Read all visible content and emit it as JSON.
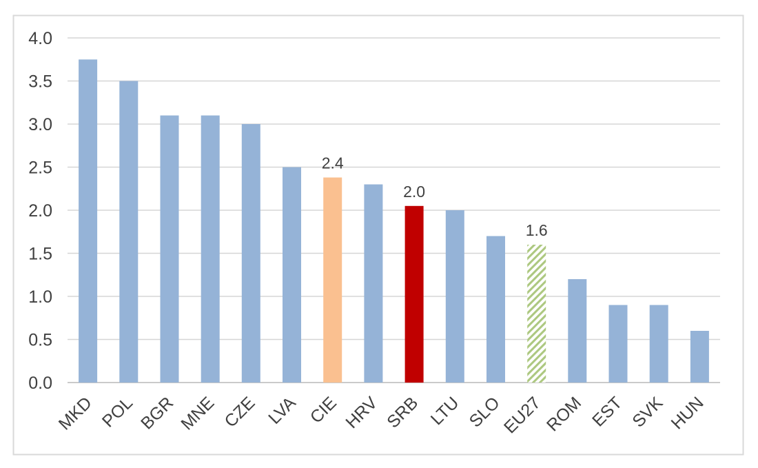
{
  "chart_data": {
    "type": "bar",
    "title": "",
    "xlabel": "",
    "ylabel": "",
    "ylim": [
      0.0,
      4.0
    ],
    "ytick_step": 0.5,
    "grid": true,
    "legend": "none",
    "yticks": [
      "0.0",
      "0.5",
      "1.0",
      "1.5",
      "2.0",
      "2.5",
      "3.0",
      "3.5",
      "4.0"
    ],
    "categories": [
      "MKD",
      "POL",
      "BGR",
      "MNE",
      "CZE",
      "LVA",
      "CIE",
      "HRV",
      "SRB",
      "LTU",
      "SLO",
      "EU27",
      "ROM",
      "EST",
      "SVK",
      "HUN"
    ],
    "values": [
      3.75,
      3.5,
      3.1,
      3.1,
      3.0,
      2.5,
      2.38,
      2.3,
      2.05,
      2.0,
      1.7,
      1.6,
      1.2,
      0.9,
      0.9,
      0.6
    ],
    "bar_styles": [
      "default",
      "default",
      "default",
      "default",
      "default",
      "default",
      "orange",
      "default",
      "red",
      "default",
      "default",
      "green-hatch",
      "default",
      "default",
      "default",
      "default"
    ],
    "data_labels": [
      {
        "category": "CIE",
        "text": "2.4"
      },
      {
        "category": "SRB",
        "text": "2.0"
      },
      {
        "category": "EU27",
        "text": "1.6"
      }
    ],
    "colors": {
      "bar_default": "#95B3D7",
      "bar_orange": "#FAC090",
      "bar_red": "#C00000",
      "bar_green_hatch": "#ADC880",
      "gridline": "#D6D6D6",
      "axis_line": "#C3C3C3",
      "text": "#404040",
      "chart_border": "#D9D9D9",
      "background": "#FFFFFF"
    }
  }
}
